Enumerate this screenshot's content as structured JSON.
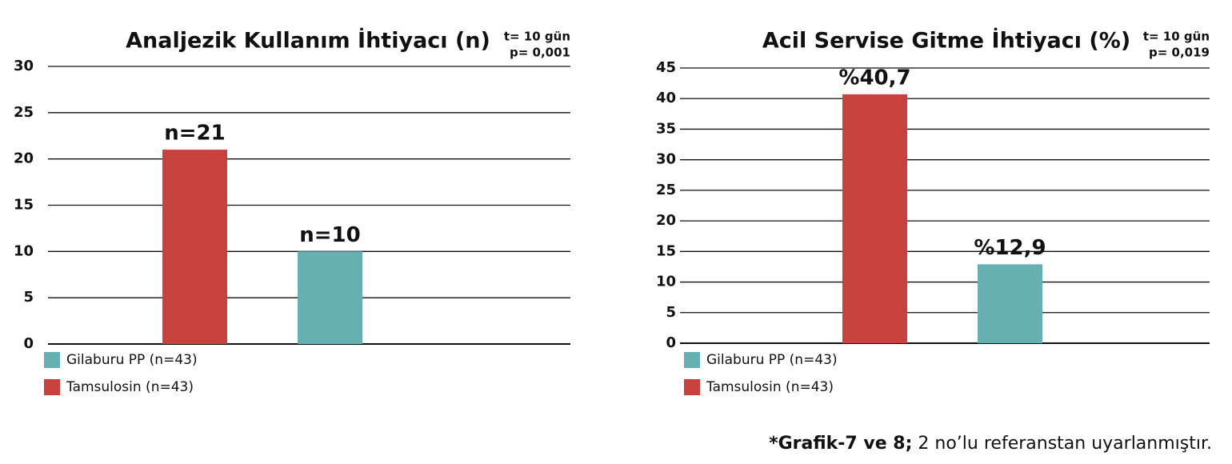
{
  "chart_data": [
    {
      "type": "bar",
      "title": "Analjezik Kullanım İhtiyacı (n)",
      "annotations": [
        "t= 10 gün",
        "p= 0,001"
      ],
      "ylim": [
        0,
        30
      ],
      "yticks": [
        0,
        5,
        10,
        15,
        20,
        25,
        30
      ],
      "grid": true,
      "legend": "bottom-left",
      "series": [
        {
          "name": "Tamsulosin (n=43)",
          "color": "#c9413c",
          "values": [
            21
          ],
          "value_labels": [
            "n=21"
          ]
        },
        {
          "name": "Gilaburu PP (n=43)",
          "color": "#67b0b2",
          "values": [
            10
          ],
          "value_labels": [
            "n=10"
          ]
        }
      ]
    },
    {
      "type": "bar",
      "title": "Acil Servise Gitme İhtiyacı (%)",
      "annotations": [
        "t= 10 gün",
        "p= 0,019"
      ],
      "ylim": [
        0,
        45
      ],
      "yticks": [
        0,
        5,
        10,
        15,
        20,
        25,
        30,
        35,
        40,
        45
      ],
      "grid": true,
      "legend": "bottom-left",
      "series": [
        {
          "name": "Tamsulosin (n=43)",
          "color": "#c9413c",
          "values": [
            40.7
          ],
          "value_labels": [
            "%40,7"
          ]
        },
        {
          "name": "Gilaburu PP (n=43)",
          "color": "#67b0b2",
          "values": [
            12.9
          ],
          "value_labels": [
            "%12,9"
          ]
        }
      ]
    }
  ],
  "footnote": {
    "bold": "*Grafik-7 ve 8;",
    "text": " 2 no’lu referanstan uyarlanmıştır."
  }
}
